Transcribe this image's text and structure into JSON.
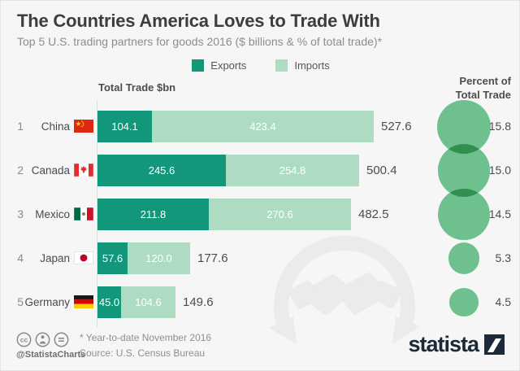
{
  "header": {
    "title": "The Countries America Loves to Trade With",
    "subtitle": "Top 5 U.S. trading partners for goods 2016 ($ billions & % of total trade)*"
  },
  "legend": {
    "exports_label": "Exports",
    "imports_label": "Imports"
  },
  "columns": {
    "left_header": "Total Trade $bn",
    "right_header_line1": "Percent of",
    "right_header_line2": "Total Trade"
  },
  "chart_data": {
    "type": "bar",
    "orientation": "horizontal",
    "stacked": true,
    "series_names": [
      "Exports",
      "Imports"
    ],
    "unit": "$ billions",
    "colors": {
      "exports": "#12977a",
      "imports": "#aedcc2",
      "percent_circle": "#6fc08f"
    },
    "rows": [
      {
        "rank": "1",
        "country": "China",
        "flag": "cn",
        "exports": 104.1,
        "imports": 423.4,
        "total": 527.6,
        "percent_of_total_trade": 15.8
      },
      {
        "rank": "2",
        "country": "Canada",
        "flag": "ca",
        "exports": 245.6,
        "imports": 254.8,
        "total": 500.4,
        "percent_of_total_trade": 15.0
      },
      {
        "rank": "3",
        "country": "Mexico",
        "flag": "mx",
        "exports": 211.8,
        "imports": 270.6,
        "total": 482.5,
        "percent_of_total_trade": 14.5
      },
      {
        "rank": "4",
        "country": "Japan",
        "flag": "jp",
        "exports": 57.6,
        "imports": 120.0,
        "total": 177.6,
        "percent_of_total_trade": 5.3
      },
      {
        "rank": "5",
        "country": "Germany",
        "flag": "de",
        "exports": 45.0,
        "imports": 104.6,
        "total": 149.6,
        "percent_of_total_trade": 4.5
      }
    ]
  },
  "footer": {
    "license_icons": [
      "cc-icon",
      "attribution-icon",
      "equal-icon"
    ],
    "handle": "@StatistaCharts",
    "footnote": "* Year-to-date November 2016",
    "source": "Source: U.S. Census Bureau",
    "brand": "statista"
  }
}
